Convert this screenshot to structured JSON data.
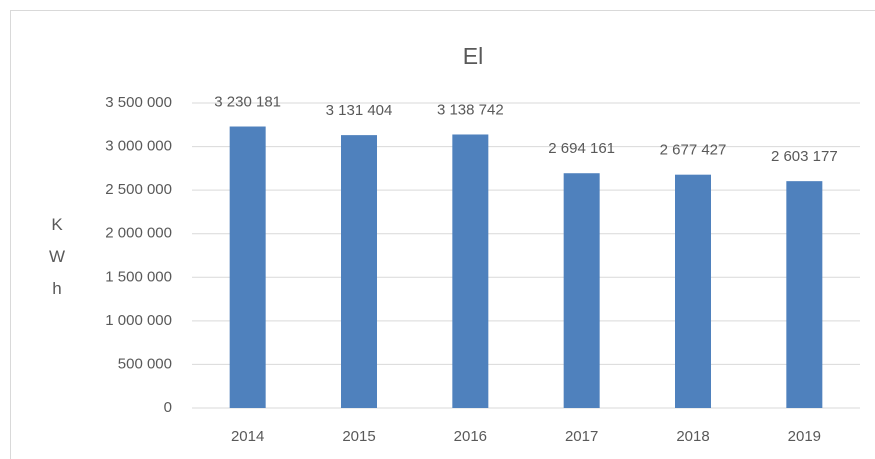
{
  "chart_data": {
    "type": "bar",
    "title": "El",
    "y_label": "KWh",
    "categories": [
      "2014",
      "2015",
      "2016",
      "2017",
      "2018",
      "2019"
    ],
    "values": [
      3230181,
      3131404,
      3138742,
      2694161,
      2677427,
      2603177
    ],
    "value_labels": [
      "3 230 181",
      "3 131 404",
      "3 138 742",
      "2 694 161",
      "2 677 427",
      "2 603 177"
    ],
    "color": "#4f81bd",
    "ylim": [
      0,
      3500000
    ],
    "yticks": [
      0,
      {
        "value": 500000,
        "label": "500 000"
      },
      {
        "value": 1000000,
        "label": "1 000 000"
      },
      {
        "value": 1500000,
        "label": "1 500 000"
      },
      {
        "value": 2000000,
        "label": "2 000 000"
      },
      {
        "value": 2500000,
        "label": "2 500 000"
      },
      {
        "value": 3000000,
        "label": "3 000 000"
      },
      {
        "value": 3500000,
        "label": "3 500 000"
      }
    ],
    "grid": true
  }
}
